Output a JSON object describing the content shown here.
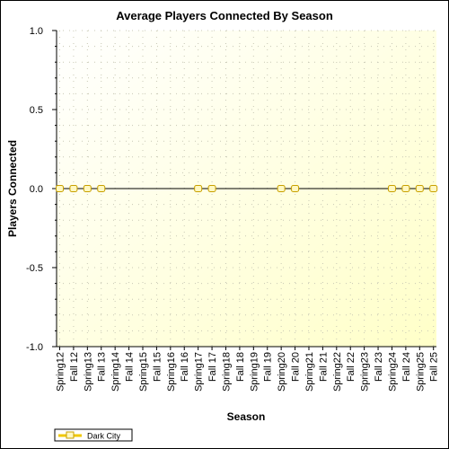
{
  "chart_data": {
    "type": "line",
    "title": "Average Players Connected By Season",
    "xlabel": "Season",
    "ylabel": "Players Connected",
    "ylim": [
      -1.0,
      1.0
    ],
    "yticks": [
      "1.0",
      "0.5",
      "0.0",
      "-0.5",
      "-1.0"
    ],
    "grid": true,
    "legend_position": "bottom-left",
    "categories": [
      "Spring12",
      "Fall 12",
      "Spring13",
      "Fall 13",
      "Spring14",
      "Fall 14",
      "Spring15",
      "Fall 15",
      "Spring16",
      "Fall 16",
      "Spring17",
      "Fall 17",
      "Spring18",
      "Fall 18",
      "Spring19",
      "Fall 19",
      "Spring20",
      "Fall 20",
      "Spring21",
      "Fall 21",
      "Spring22",
      "Fall 22",
      "Spring23",
      "Fall 23",
      "Spring24",
      "Fall 24",
      "Spring25",
      "Fall 25"
    ],
    "series": [
      {
        "name": "Dark City",
        "color": "#f0c800",
        "points": [
          {
            "x": "Spring12",
            "y": 0.0
          },
          {
            "x": "Fall 12",
            "y": 0.0
          },
          {
            "x": "Spring13",
            "y": 0.0
          },
          {
            "x": "Fall 13",
            "y": 0.0
          },
          {
            "x": "Spring17",
            "y": 0.0
          },
          {
            "x": "Fall 17",
            "y": 0.0
          },
          {
            "x": "Spring20",
            "y": 0.0
          },
          {
            "x": "Fall 20",
            "y": 0.0
          },
          {
            "x": "Spring24",
            "y": 0.0
          },
          {
            "x": "Fall 24",
            "y": 0.0
          },
          {
            "x": "Spring25",
            "y": 0.0
          },
          {
            "x": "Fall 25",
            "y": 0.0
          }
        ]
      }
    ]
  },
  "colors": {
    "plot_background_top": "#fefef0",
    "plot_background_bottom": "#ffffc8",
    "grid": "#c8c8b4",
    "line": "#000000",
    "marker_fill": "#fff8c0",
    "marker_stroke": "#c8a000"
  }
}
